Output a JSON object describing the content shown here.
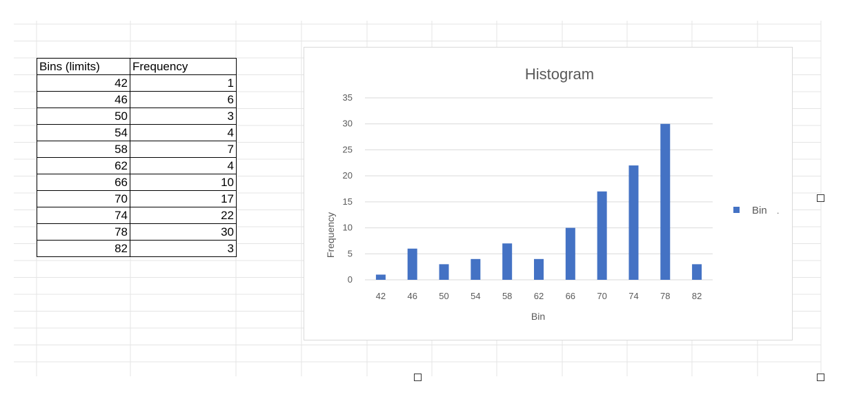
{
  "table": {
    "headers": [
      "Bins (limits)",
      "Frequency"
    ],
    "rows": [
      [
        "42",
        "1"
      ],
      [
        "46",
        "6"
      ],
      [
        "50",
        "3"
      ],
      [
        "54",
        "4"
      ],
      [
        "58",
        "7"
      ],
      [
        "62",
        "4"
      ],
      [
        "66",
        "10"
      ],
      [
        "70",
        "17"
      ],
      [
        "74",
        "22"
      ],
      [
        "78",
        "30"
      ],
      [
        "82",
        "3"
      ]
    ]
  },
  "chart_data": {
    "type": "bar",
    "title": "Histogram",
    "xlabel": "Bin",
    "ylabel": "Frequency",
    "categories": [
      "42",
      "46",
      "50",
      "54",
      "58",
      "62",
      "66",
      "70",
      "74",
      "78",
      "82"
    ],
    "series": [
      {
        "name": "Bin",
        "values": [
          1,
          6,
          3,
          4,
          7,
          4,
          10,
          17,
          22,
          30,
          3
        ]
      }
    ],
    "ylim": [
      0,
      35
    ],
    "yticks": [
      0,
      5,
      10,
      15,
      20,
      25,
      30,
      35
    ],
    "grid": true,
    "legend": "right",
    "bar_color": "#4472c4",
    "legend_suffix": "."
  },
  "colors": {
    "bar": "#4472c4",
    "gridline": "#d9d9d9",
    "axis_text": "#595959",
    "sheet_grid": "#e4e4e4"
  }
}
